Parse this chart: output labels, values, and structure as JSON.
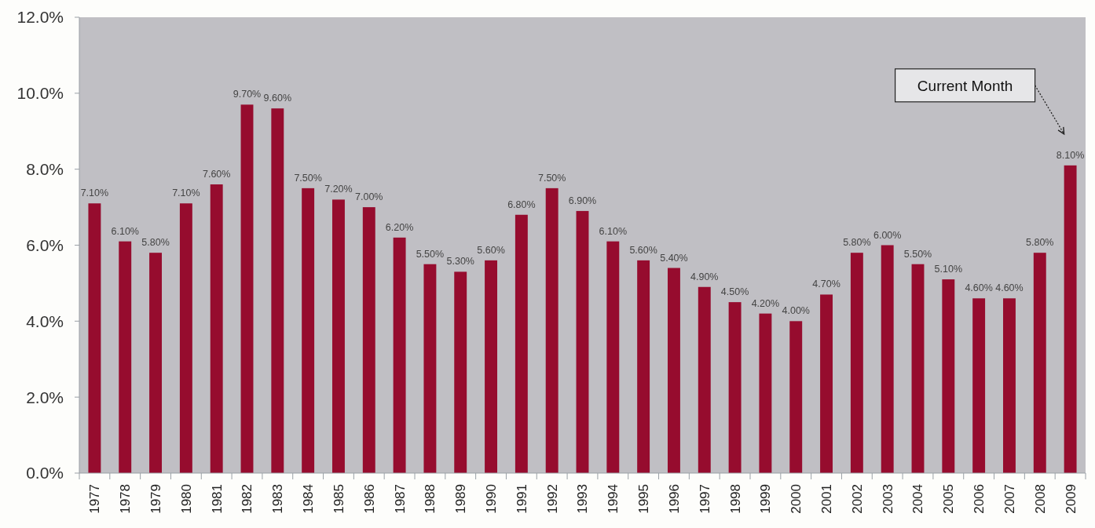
{
  "chart_data": {
    "type": "bar",
    "categories": [
      "1977",
      "1978",
      "1979",
      "1980",
      "1981",
      "1982",
      "1983",
      "1984",
      "1985",
      "1986",
      "1987",
      "1988",
      "1989",
      "1990",
      "1991",
      "1992",
      "1993",
      "1994",
      "1995",
      "1996",
      "1997",
      "1998",
      "1999",
      "2000",
      "2001",
      "2002",
      "2003",
      "2004",
      "2005",
      "2006",
      "2007",
      "2008",
      "2009"
    ],
    "values": [
      7.1,
      6.1,
      5.8,
      7.1,
      7.6,
      9.7,
      9.6,
      7.5,
      7.2,
      7.0,
      6.2,
      5.5,
      5.3,
      5.6,
      6.8,
      7.5,
      6.9,
      6.1,
      5.6,
      5.4,
      4.9,
      4.5,
      4.2,
      4.0,
      4.7,
      5.8,
      6.0,
      5.5,
      5.1,
      4.6,
      4.6,
      5.8,
      8.1
    ],
    "value_labels": [
      "7.10%",
      "6.10%",
      "5.80%",
      "7.10%",
      "7.60%",
      "9.70%",
      "9.60%",
      "7.50%",
      "7.20%",
      "7.00%",
      "6.20%",
      "5.50%",
      "5.30%",
      "5.60%",
      "6.80%",
      "7.50%",
      "6.90%",
      "6.10%",
      "5.60%",
      "5.40%",
      "4.90%",
      "4.50%",
      "4.20%",
      "4.00%",
      "4.70%",
      "5.80%",
      "6.00%",
      "5.50%",
      "5.10%",
      "4.60%",
      "4.60%",
      "5.80%",
      "8.10%"
    ],
    "color": "#960c2e",
    "ylim": [
      0,
      12
    ],
    "yticks": [
      {
        "value": 0,
        "label": "0.0%"
      },
      {
        "value": 2,
        "label": "2.0%"
      },
      {
        "value": 4,
        "label": "4.0%"
      },
      {
        "value": 6,
        "label": "6.0%"
      },
      {
        "value": 8,
        "label": "8.0%"
      },
      {
        "value": 10,
        "label": "10.0%"
      },
      {
        "value": 12,
        "label": "12.0%"
      }
    ],
    "grid": false,
    "annotations": [
      "Current Month"
    ]
  }
}
